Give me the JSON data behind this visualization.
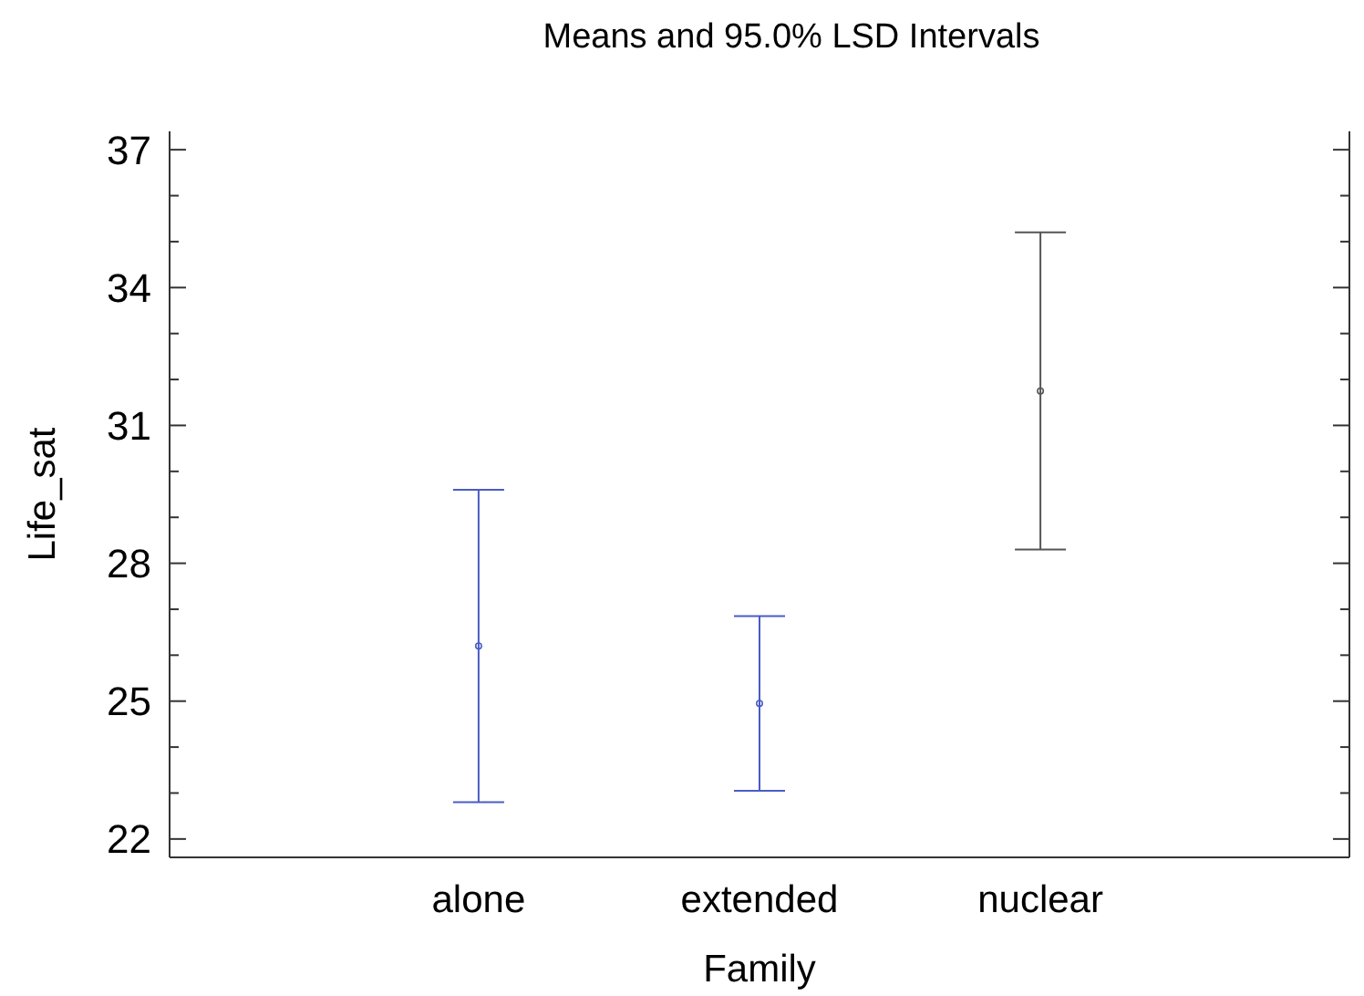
{
  "chart_data": {
    "type": "scatter",
    "title": "Means and 95.0% LSD Intervals",
    "xlabel": "Family",
    "ylabel": "Life_sat",
    "categories": [
      "alone",
      "extended",
      "nuclear"
    ],
    "values": [
      26.2,
      24.95,
      31.75
    ],
    "errors": [
      3.4,
      1.9,
      3.45
    ],
    "colors": [
      "#4a5cc4",
      "#4a5cc4",
      "#555555"
    ],
    "marker": "circle",
    "grid": false,
    "ylim": [
      21.6,
      37.4
    ],
    "yticks": [
      22,
      {
        "value": 23,
        "label": null
      },
      {
        "value": 24,
        "label": null
      },
      25,
      {
        "value": 26,
        "label": null
      },
      {
        "value": 27,
        "label": null
      },
      28,
      {
        "value": 29,
        "label": null
      },
      {
        "value": 30,
        "label": null
      },
      31,
      {
        "value": 32,
        "label": null
      },
      {
        "value": 33,
        "label": null
      },
      34,
      {
        "value": 35,
        "label": null
      },
      {
        "value": 36,
        "label": null
      },
      37
    ]
  }
}
